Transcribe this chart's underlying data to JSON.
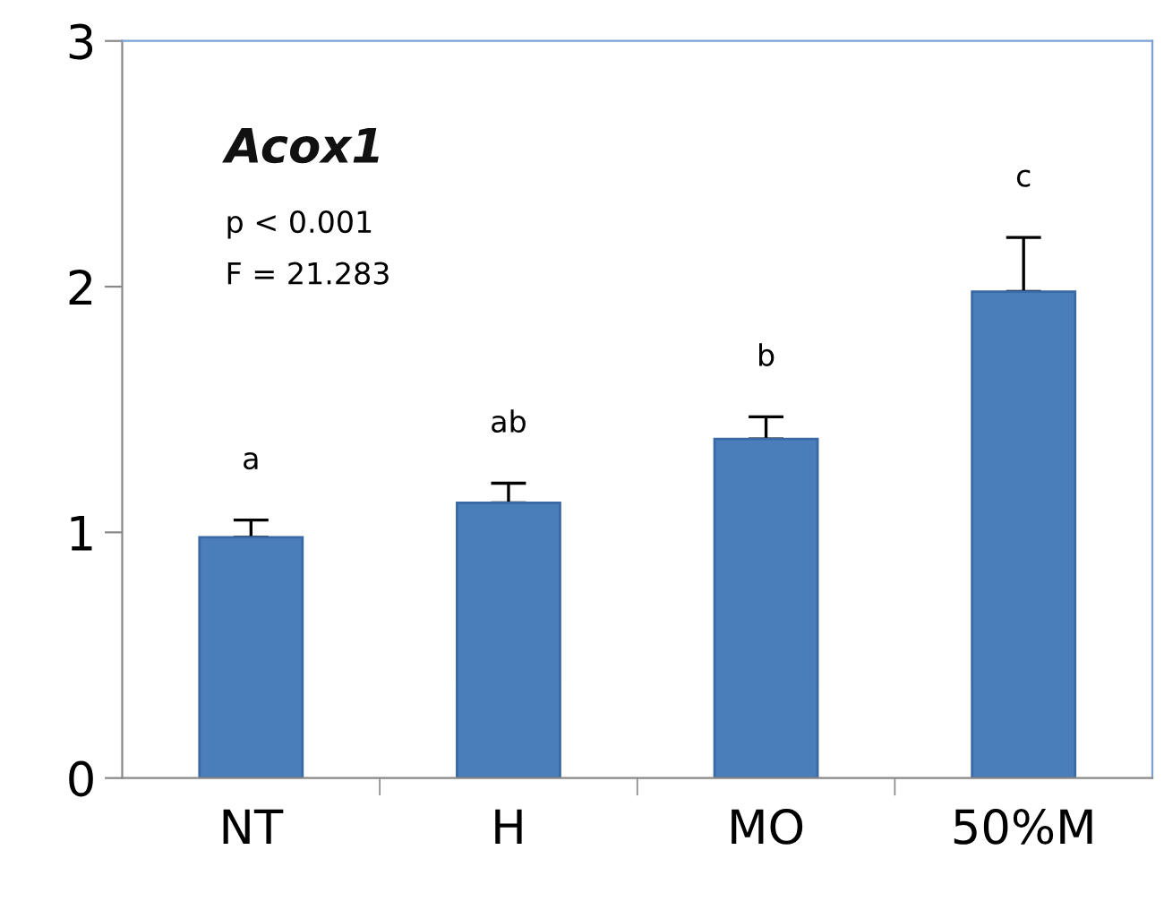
{
  "chart_data": {
    "type": "bar",
    "title": "Acox1",
    "categories": [
      "NT",
      "H",
      "MO",
      "50%M"
    ],
    "values": [
      0.98,
      1.12,
      1.38,
      1.98
    ],
    "errors": [
      [
        0.98,
        1.05
      ],
      [
        1.12,
        1.2
      ],
      [
        1.38,
        1.47
      ],
      [
        1.98,
        2.2
      ]
    ],
    "color": "#4a7ebb",
    "ylim": [
      0,
      3
    ],
    "yticks": [
      0,
      1,
      2,
      3
    ],
    "grid": false,
    "annotations": [
      "p < 0.001",
      "F = 21.283",
      "a",
      "ab",
      "b",
      "c"
    ]
  }
}
